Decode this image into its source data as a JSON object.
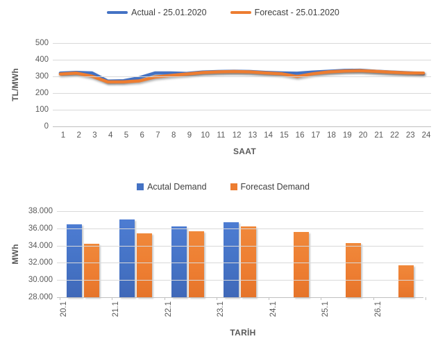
{
  "colors": {
    "actual": "#4472C4",
    "forecast": "#ED7D31",
    "gridline": "#D9D9D9",
    "axis_text": "#595959",
    "legend_text": "#404040"
  },
  "chart_data": [
    {
      "type": "line",
      "x": [
        1,
        2,
        3,
        4,
        5,
        6,
        7,
        8,
        9,
        10,
        11,
        12,
        13,
        14,
        15,
        16,
        17,
        18,
        19,
        20,
        21,
        22,
        23,
        24
      ],
      "series": [
        {
          "name": "Actual - 25.01.2020",
          "color": "#4472C4",
          "values": [
            320,
            324,
            321,
            272,
            274,
            292,
            321,
            321,
            318,
            326,
            329,
            331,
            329,
            324,
            321,
            319,
            326,
            331,
            336,
            337,
            331,
            326,
            322,
            317
          ]
        },
        {
          "name": "Forecast - 25.01.2020",
          "color": "#ED7D31",
          "values": [
            314,
            320,
            301,
            267,
            267,
            273,
            296,
            306,
            314,
            323,
            327,
            329,
            327,
            321,
            316,
            299,
            316,
            327,
            332,
            334,
            330,
            325,
            321,
            320
          ]
        }
      ],
      "xlabel": "SAAT",
      "ylabel": "TL/MWh",
      "ylim": [
        0,
        500
      ],
      "ytick_labels": [
        "500",
        "400",
        "300",
        "200",
        "100",
        "0"
      ],
      "grid": "horizontal",
      "legend_position": "top"
    },
    {
      "type": "bar",
      "categories": [
        "20.1",
        "21.1",
        "22.1",
        "23.1",
        "24.1",
        "25.1",
        "26.1"
      ],
      "series": [
        {
          "name": "Acutal Demand",
          "color": "#4472C4",
          "values": [
            36500,
            37000,
            36250,
            36700,
            null,
            null,
            null
          ]
        },
        {
          "name": "Forecast Demand",
          "color": "#ED7D31",
          "values": [
            34250,
            35400,
            35700,
            36200,
            35600,
            34300,
            31700
          ]
        }
      ],
      "xlabel": "TARİH",
      "ylabel": "MWh",
      "ylim": [
        28000,
        38000
      ],
      "ytick_labels": [
        "38.000",
        "36.000",
        "34.000",
        "32.000",
        "30.000",
        "28.000"
      ],
      "grid": "horizontal",
      "legend_position": "top"
    }
  ]
}
